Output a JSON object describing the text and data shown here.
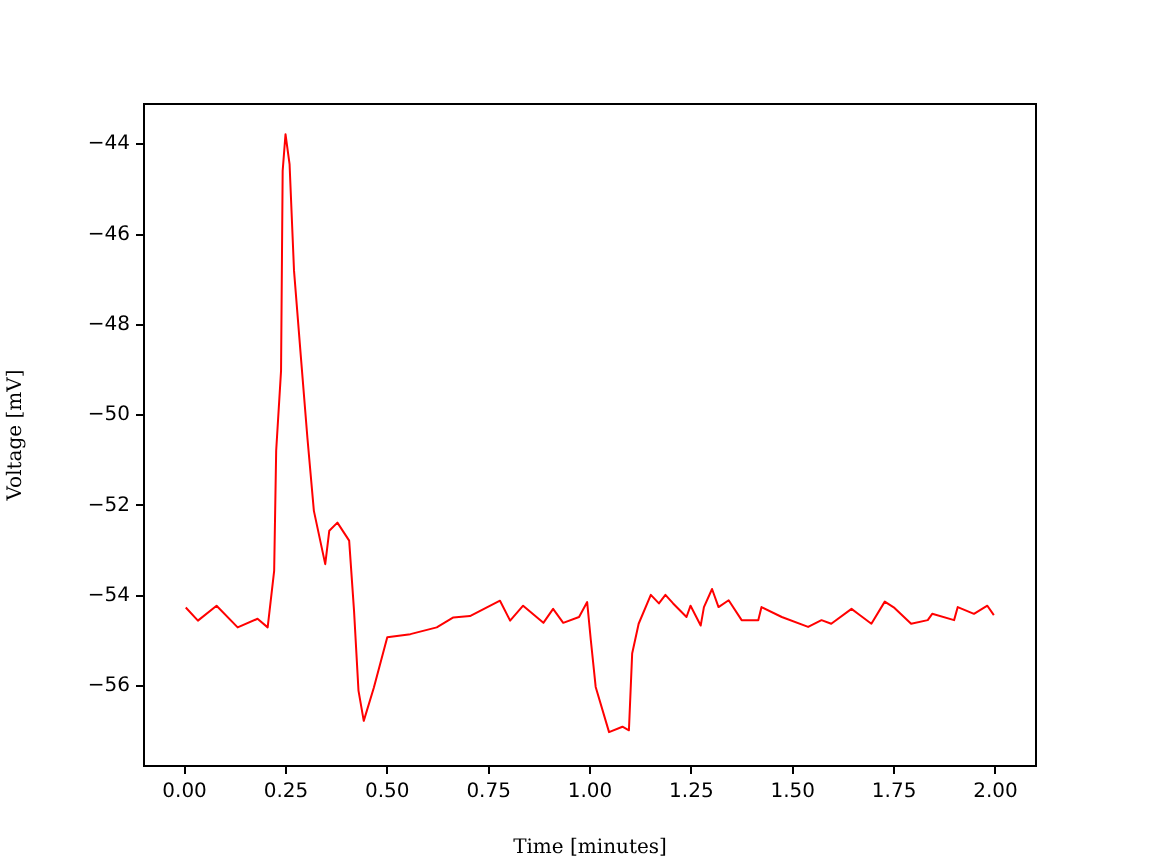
{
  "chart_data": {
    "type": "line",
    "xlabel": "Time [minutes]",
    "ylabel": "Voltage [mV]",
    "x": [
      0.003,
      0.033,
      0.079,
      0.131,
      0.18,
      0.205,
      0.221,
      0.226,
      0.238,
      0.242,
      0.249,
      0.259,
      0.27,
      0.287,
      0.303,
      0.319,
      0.347,
      0.357,
      0.377,
      0.406,
      0.418,
      0.429,
      0.442,
      0.467,
      0.5,
      0.557,
      0.622,
      0.663,
      0.704,
      0.778,
      0.803,
      0.835,
      0.885,
      0.909,
      0.934,
      0.973,
      0.993,
      1.002,
      1.014,
      1.047,
      1.08,
      1.096,
      1.104,
      1.12,
      1.15,
      1.17,
      1.186,
      1.205,
      1.238,
      1.248,
      1.273,
      1.281,
      1.301,
      1.317,
      1.342,
      1.374,
      1.415,
      1.423,
      1.473,
      1.538,
      1.571,
      1.595,
      1.645,
      1.661,
      1.694,
      1.727,
      1.751,
      1.792,
      1.833,
      1.844,
      1.898,
      1.907,
      1.947,
      1.98,
      1.996
    ],
    "series": [
      {
        "color": "#ff0000",
        "values": [
          -54.26,
          -54.55,
          -54.22,
          -54.7,
          -54.51,
          -54.7,
          -53.45,
          -50.79,
          -49.02,
          -44.59,
          -43.78,
          -44.44,
          -46.8,
          -48.72,
          -50.5,
          -52.12,
          -53.3,
          -52.56,
          -52.38,
          -52.78,
          -54.33,
          -56.1,
          -56.77,
          -56.03,
          -54.92,
          -54.85,
          -54.7,
          -54.48,
          -54.45,
          -54.11,
          -54.55,
          -54.22,
          -54.6,
          -54.29,
          -54.6,
          -54.47,
          -54.14,
          -54.98,
          -56.02,
          -57.02,
          -56.9,
          -56.98,
          -55.28,
          -54.62,
          -53.98,
          -54.17,
          -53.98,
          -54.17,
          -54.47,
          -54.22,
          -54.66,
          -54.25,
          -53.85,
          -54.25,
          -54.1,
          -54.54,
          -54.54,
          -54.25,
          -54.47,
          -54.69,
          -54.54,
          -54.62,
          -54.29,
          -54.4,
          -54.62,
          -54.13,
          -54.27,
          -54.62,
          -54.54,
          -54.4,
          -54.54,
          -54.25,
          -54.4,
          -54.22,
          -54.43
        ]
      }
    ],
    "xlim": [
      -0.1,
      2.1
    ],
    "ylim": [
      -57.77,
      -43.11
    ],
    "xticks": [
      {
        "value": 0,
        "label": "0.00"
      },
      {
        "value": 0.25,
        "label": "0.25"
      },
      {
        "value": 0.5,
        "label": "0.50"
      },
      {
        "value": 0.75,
        "label": "0.75"
      },
      {
        "value": 1,
        "label": "1.00"
      },
      {
        "value": 1.25,
        "label": "1.25"
      },
      {
        "value": 1.5,
        "label": "1.50"
      },
      {
        "value": 1.75,
        "label": "1.75"
      },
      {
        "value": 2,
        "label": "2.00"
      }
    ],
    "yticks": [
      {
        "value": -56,
        "label": "−56"
      },
      {
        "value": -54,
        "label": "−54"
      },
      {
        "value": -52,
        "label": "−52"
      },
      {
        "value": -50,
        "label": "−50"
      },
      {
        "value": -48,
        "label": "−48"
      },
      {
        "value": -46,
        "label": "−46"
      },
      {
        "value": -44,
        "label": "−44"
      }
    ]
  }
}
